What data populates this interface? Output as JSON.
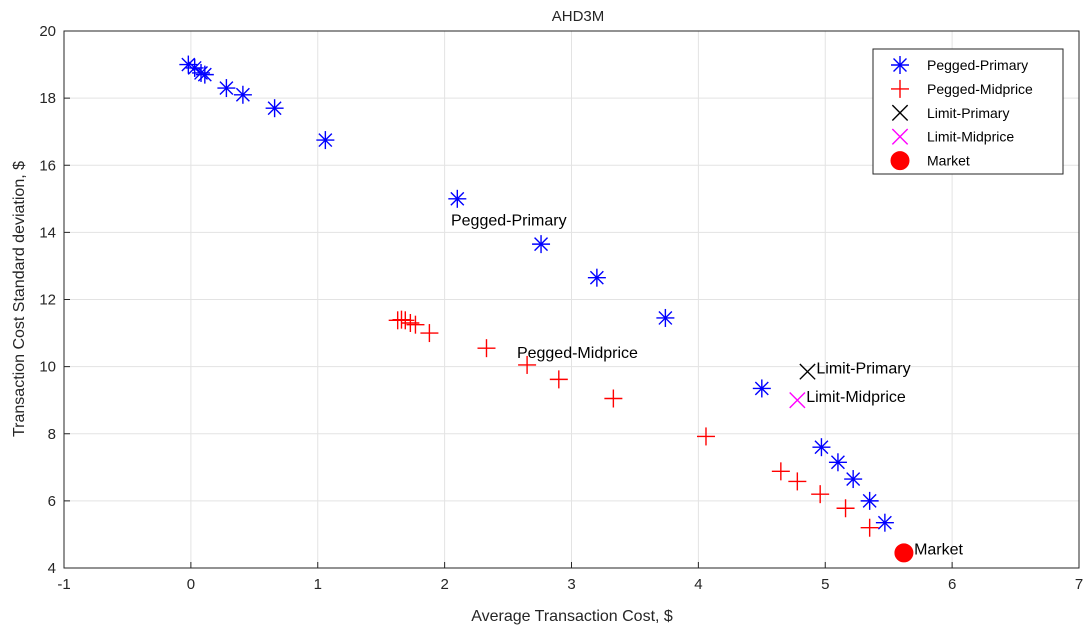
{
  "chart_data": {
    "type": "scatter",
    "title": "AHD3M",
    "xlabel": "Average Transaction Cost, $",
    "ylabel": "Transaction Cost Standard deviation, $",
    "xlim": [
      -1,
      7
    ],
    "ylim": [
      4,
      20
    ],
    "xticks": [
      -1,
      0,
      1,
      2,
      3,
      4,
      5,
      6,
      7
    ],
    "yticks": [
      4,
      6,
      8,
      10,
      12,
      14,
      16,
      18,
      20
    ],
    "xtick_labels": [
      "-1",
      "0",
      "1",
      "2",
      "3",
      "4",
      "5",
      "6",
      "7"
    ],
    "ytick_labels": [
      "4",
      "6",
      "8",
      "10",
      "12",
      "14",
      "16",
      "18",
      "20"
    ],
    "grid": true,
    "legend_placement": "top-right",
    "series": [
      {
        "name": "Pegged-Primary",
        "marker": "asterisk",
        "color": "#0000ff",
        "points": [
          [
            -0.02,
            19.0
          ],
          [
            0.03,
            18.9
          ],
          [
            0.08,
            18.75
          ],
          [
            0.11,
            18.7
          ],
          [
            0.28,
            18.3
          ],
          [
            0.41,
            18.1
          ],
          [
            0.66,
            17.7
          ],
          [
            1.06,
            16.75
          ],
          [
            2.1,
            15.0
          ],
          [
            2.76,
            13.65
          ],
          [
            3.2,
            12.65
          ],
          [
            3.74,
            11.45
          ],
          [
            4.5,
            9.35
          ],
          [
            4.97,
            7.6
          ],
          [
            5.1,
            7.15
          ],
          [
            5.22,
            6.65
          ],
          [
            5.35,
            6.0
          ],
          [
            5.47,
            5.35
          ]
        ]
      },
      {
        "name": "Pegged-Midprice",
        "marker": "plus",
        "color": "#ff0000",
        "points": [
          [
            1.63,
            11.38
          ],
          [
            1.66,
            11.4
          ],
          [
            1.69,
            11.38
          ],
          [
            1.73,
            11.3
          ],
          [
            1.77,
            11.25
          ],
          [
            1.88,
            11.0
          ],
          [
            2.33,
            10.55
          ],
          [
            2.65,
            10.05
          ],
          [
            2.9,
            9.62
          ],
          [
            3.33,
            9.05
          ],
          [
            4.06,
            7.92
          ],
          [
            4.65,
            6.88
          ],
          [
            4.78,
            6.58
          ],
          [
            4.96,
            6.2
          ],
          [
            5.16,
            5.78
          ],
          [
            5.35,
            5.2
          ]
        ]
      },
      {
        "name": "Limit-Primary",
        "marker": "x",
        "color": "#000000",
        "points": [
          [
            4.86,
            9.85
          ]
        ]
      },
      {
        "name": "Limit-Midprice",
        "marker": "x",
        "color": "#ff00ff",
        "points": [
          [
            4.78,
            9.0
          ]
        ]
      },
      {
        "name": "Market",
        "marker": "filled-circle",
        "color": "#ff0000",
        "points": [
          [
            5.62,
            4.45
          ]
        ]
      }
    ],
    "annotations": [
      {
        "text": "Pegged-Primary",
        "x": 2.05,
        "y": 14.2
      },
      {
        "text": "Pegged-Midprice",
        "x": 2.57,
        "y": 10.25
      },
      {
        "text": "Limit-Primary",
        "x": 4.93,
        "y": 9.8
      },
      {
        "text": "Limit-Midprice",
        "x": 4.85,
        "y": 8.95
      },
      {
        "text": "Market",
        "x": 5.7,
        "y": 4.4
      }
    ]
  }
}
